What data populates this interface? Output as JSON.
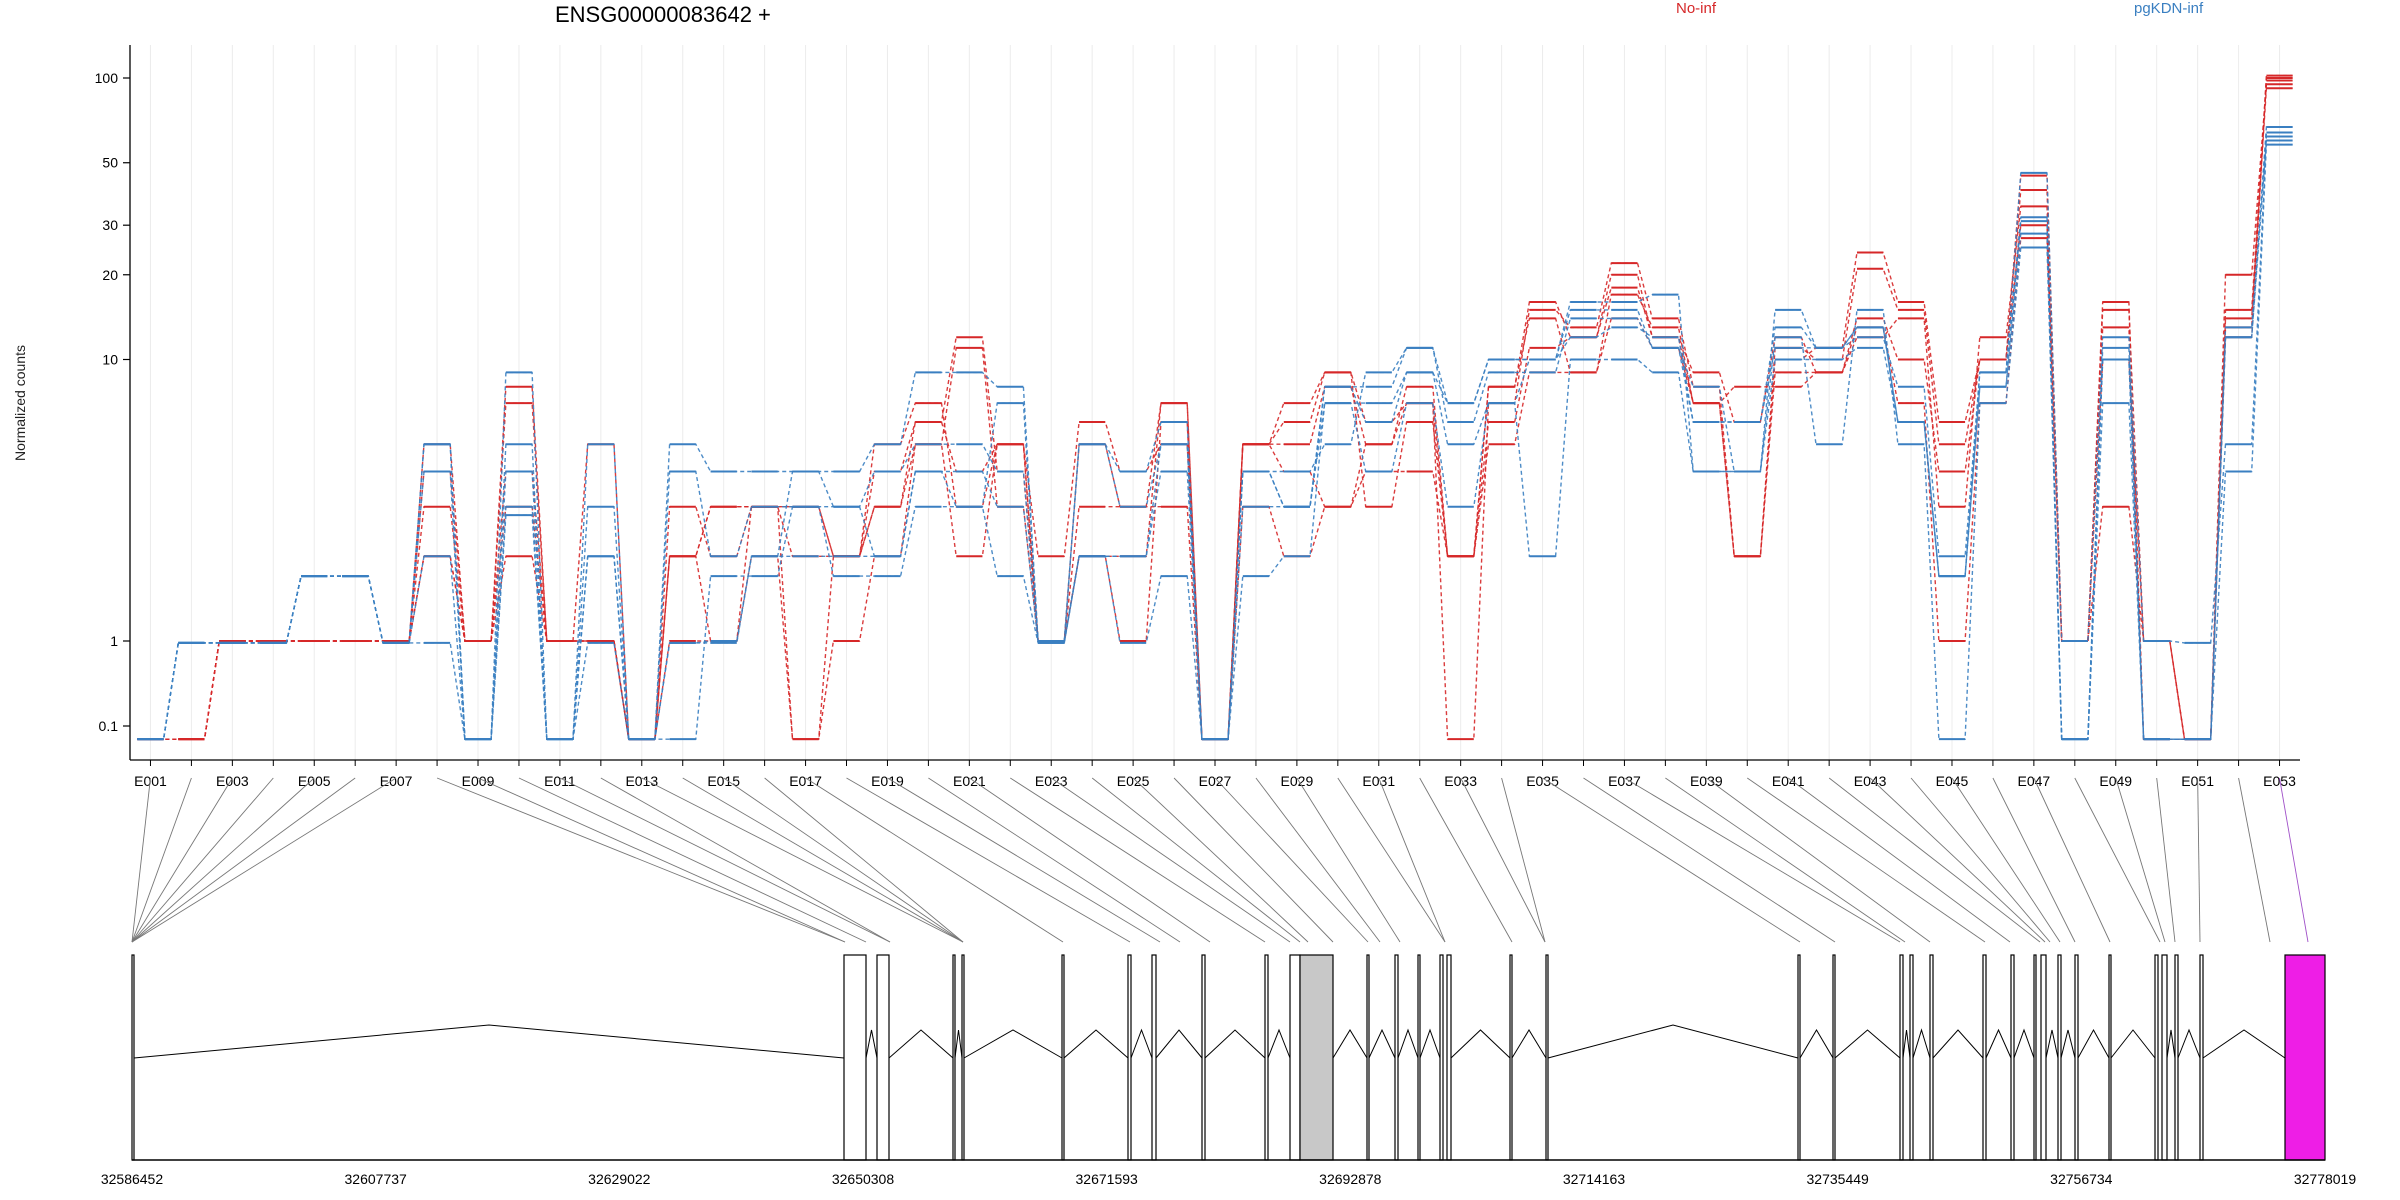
{
  "chart_data": {
    "type": "line",
    "title": "ENSG00000083642 +",
    "ylabel": "Normalized counts",
    "yscale": "log",
    "yticks": [
      0.1,
      1,
      10,
      20,
      30,
      50,
      100
    ],
    "ytick_labels": [
      "0.1",
      "1",
      "10",
      "20",
      "30",
      "50",
      "100"
    ],
    "grid": "vertical light",
    "legend": [
      {
        "name": "No-inf",
        "color": "#d62728"
      },
      {
        "name": "pgKDN-inf",
        "color": "#3a7fc1"
      }
    ],
    "exon_tick_labels": [
      "E001",
      "E003",
      "E005",
      "E007",
      "E009",
      "E011",
      "E013",
      "E015",
      "E017",
      "E019",
      "E021",
      "E023",
      "E025",
      "E027",
      "E029",
      "E031",
      "E033",
      "E035",
      "E037",
      "E039",
      "E041",
      "E043",
      "E045",
      "E047",
      "E049",
      "E051",
      "E053"
    ],
    "exons": [
      "E001",
      "E002",
      "E003",
      "E004",
      "E005",
      "E006",
      "E007",
      "E008",
      "E009",
      "E010",
      "E011",
      "E012",
      "E013",
      "E014",
      "E015",
      "E016",
      "E017",
      "E018",
      "E019",
      "E020",
      "E021",
      "E022",
      "E023",
      "E024",
      "E025",
      "E026",
      "E027",
      "E028",
      "E029",
      "E030",
      "E031",
      "E032",
      "E033",
      "E034",
      "E035",
      "E036",
      "E037",
      "E038",
      "E039",
      "E040",
      "E041",
      "E042",
      "E043",
      "E044",
      "E045",
      "E046",
      "E047",
      "E048",
      "E049",
      "E050",
      "E051",
      "E052",
      "E053"
    ],
    "series": [
      {
        "group": "No-inf",
        "values": [
          0.07,
          0.07,
          1,
          1,
          1,
          1,
          1,
          2,
          1,
          7,
          1,
          1,
          0.07,
          2,
          1,
          3,
          0.07,
          2,
          3,
          6,
          12,
          4,
          1,
          2,
          2,
          7,
          0.07,
          5,
          6,
          9,
          6,
          7,
          0.07,
          7,
          15,
          13,
          22,
          14,
          8,
          2,
          10,
          11,
          24,
          16,
          6,
          10,
          45,
          1,
          15,
          1,
          0.07,
          15,
          100
        ]
      },
      {
        "group": "No-inf",
        "values": [
          0.07,
          0.07,
          1,
          1,
          1,
          1,
          1,
          3,
          1,
          4,
          1,
          1,
          0.07,
          1,
          1,
          2,
          0.07,
          1,
          2,
          5,
          11,
          3,
          1,
          2,
          1,
          6,
          0.07,
          5,
          5,
          8,
          5,
          7,
          2,
          6,
          11,
          12,
          20,
          12,
          7,
          2,
          11,
          10,
          21,
          15,
          5,
          10,
          40,
          1,
          13,
          0.07,
          0.07,
          13,
          98
        ]
      },
      {
        "group": "No-inf",
        "values": [
          0.07,
          0.07,
          1,
          1,
          1,
          1,
          1,
          4,
          1,
          3,
          1,
          1,
          0.07,
          2,
          3,
          3,
          2,
          2,
          4,
          6,
          4,
          5,
          1,
          5,
          3,
          7,
          0.07,
          5,
          7,
          9,
          3,
          6,
          2,
          8,
          16,
          12,
          18,
          12,
          9,
          6,
          12,
          9,
          12,
          14,
          3,
          12,
          35,
          1,
          16,
          0.07,
          0.07,
          20,
          95
        ]
      },
      {
        "group": "No-inf",
        "values": [
          0.07,
          0.07,
          1,
          1,
          1,
          1,
          1,
          5,
          1,
          8,
          1,
          5,
          0.07,
          3,
          2,
          3,
          3,
          2,
          5,
          7,
          3,
          5,
          2,
          6,
          4,
          5,
          0.07,
          5,
          4,
          3,
          5,
          8,
          2,
          8,
          14,
          9,
          17,
          13,
          7,
          8,
          8,
          9,
          14,
          10,
          4,
          10,
          30,
          1,
          10,
          1,
          0.07,
          14,
          92
        ]
      },
      {
        "group": "No-inf",
        "values": [
          0.07,
          0.07,
          1,
          1,
          1,
          1,
          1,
          2,
          1,
          2,
          1,
          1,
          0.07,
          2,
          3,
          3,
          3,
          2,
          3,
          5,
          2,
          5,
          1,
          3,
          3,
          3,
          0.07,
          3,
          2,
          3,
          4,
          4,
          2,
          5,
          9,
          9,
          14,
          11,
          7,
          2,
          9,
          9,
          13,
          7,
          1,
          7,
          27,
          1,
          3,
          1,
          0.07,
          12,
          102
        ]
      },
      {
        "group": "pgKDN-inf",
        "values": [
          0.07,
          0.95,
          0.95,
          0.95,
          1.7,
          1.7,
          0.95,
          5,
          0.07,
          9,
          0.07,
          5,
          0.07,
          5,
          4,
          4,
          4,
          4,
          5,
          9,
          9,
          8,
          1,
          5,
          4,
          6,
          0.07,
          4,
          4,
          5,
          9,
          11,
          7,
          10,
          10,
          16,
          16,
          17,
          4,
          4,
          15,
          11,
          12,
          8,
          2,
          9,
          46,
          1,
          12,
          1,
          0.95,
          5,
          62
        ]
      },
      {
        "group": "pgKDN-inf",
        "values": [
          0.07,
          0.95,
          0.95,
          0.95,
          1.7,
          1.7,
          0.95,
          4,
          0.07,
          5,
          0.07,
          3,
          0.07,
          0.95,
          0.95,
          2,
          4,
          3,
          4,
          5,
          5,
          4,
          1,
          5,
          3,
          5,
          0.07,
          4,
          3,
          8,
          8,
          11,
          6,
          9,
          9,
          14,
          14,
          11,
          8,
          4,
          10,
          10,
          11,
          6,
          1.7,
          8,
          31,
          0.07,
          11,
          0.07,
          0.07,
          4,
          58
        ]
      },
      {
        "group": "pgKDN-inf",
        "values": [
          0.07,
          0.95,
          0.95,
          0.95,
          1.7,
          1.7,
          0.95,
          2,
          0.07,
          3,
          0.07,
          2,
          0.07,
          0.95,
          1,
          2,
          2,
          2,
          2,
          4,
          4,
          3,
          0.95,
          2,
          2,
          4,
          0.07,
          3,
          3,
          8,
          6,
          9,
          5,
          7,
          10,
          12,
          13,
          12,
          6,
          6,
          11,
          11,
          13,
          6,
          1.7,
          8,
          28,
          0.07,
          10,
          0.07,
          0.07,
          12,
          67
        ]
      },
      {
        "group": "pgKDN-inf",
        "values": [
          0.07,
          0.95,
          0.95,
          0.95,
          1.7,
          1.7,
          0.95,
          0.95,
          0.07,
          2.8,
          0.07,
          0.95,
          0.07,
          0.07,
          1.7,
          1.7,
          3,
          1.7,
          1.7,
          3,
          3,
          1.7,
          0.95,
          2,
          0.95,
          1.7,
          0.07,
          1.7,
          2,
          7,
          4,
          7,
          3,
          7,
          2,
          10,
          10,
          9,
          4,
          4,
          12,
          5,
          15,
          5,
          0.07,
          7,
          25,
          0.07,
          7,
          0.07,
          0.07,
          12,
          60
        ]
      },
      {
        "group": "pgKDN-inf",
        "values": [
          0.07,
          0.95,
          0.95,
          0.95,
          1.7,
          1.7,
          0.95,
          5,
          0.07,
          4,
          0.07,
          2,
          0.07,
          4,
          2,
          3,
          3,
          3,
          2,
          4,
          3,
          7,
          1,
          2,
          2,
          5,
          0.07,
          4,
          3,
          7,
          7,
          9,
          7,
          10,
          10,
          15,
          15,
          11,
          6,
          6,
          13,
          11,
          13,
          6,
          1.7,
          9,
          32,
          0.07,
          10,
          0.07,
          0.07,
          13,
          64
        ]
      }
    ],
    "genome_coordinates": [
      "32586452",
      "32607737",
      "32629022",
      "32650308",
      "32671593",
      "32692878",
      "32714163",
      "32735449",
      "32756734",
      "32778019"
    ],
    "gene_model": {
      "range": [
        32586452,
        32778019
      ]
    }
  }
}
